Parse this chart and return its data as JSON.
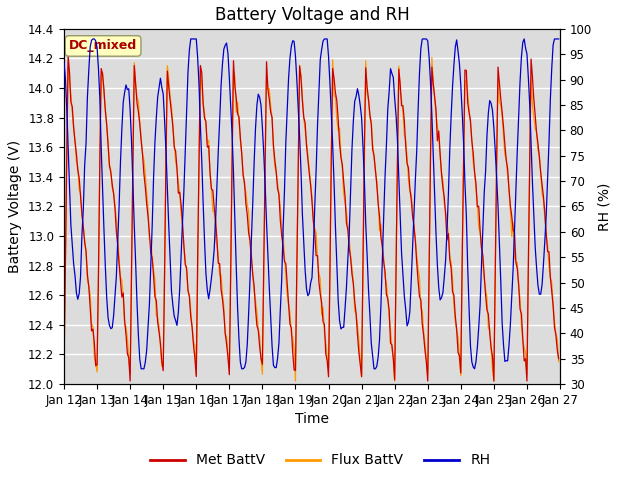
{
  "title": "Battery Voltage and RH",
  "xlabel": "Time",
  "ylabel_left": "Battery Voltage (V)",
  "ylabel_right": "RH (%)",
  "ylim_left": [
    12.0,
    14.4
  ],
  "ylim_right": [
    30,
    100
  ],
  "yticks_left": [
    12.0,
    12.2,
    12.4,
    12.6,
    12.8,
    13.0,
    13.2,
    13.4,
    13.6,
    13.8,
    14.0,
    14.2,
    14.4
  ],
  "yticks_right": [
    30,
    35,
    40,
    45,
    50,
    55,
    60,
    65,
    70,
    75,
    80,
    85,
    90,
    95,
    100
  ],
  "xtick_labels": [
    "Jan 12",
    "Jan 13",
    "Jan 14",
    "Jan 15",
    "Jan 16",
    "Jan 17",
    "Jan 18",
    "Jan 19",
    "Jan 20",
    "Jan 21",
    "Jan 22",
    "Jan 23",
    "Jan 24",
    "Jan 25",
    "Jan 26",
    "Jan 27"
  ],
  "color_met": "#cc0000",
  "color_flux": "#ff9900",
  "color_rh": "#0000cc",
  "bg_plot": "#dcdcdc",
  "bg_figure": "#ffffff",
  "annotation_text": "DC_mixed",
  "annotation_color": "#aa0000",
  "annotation_bg": "#ffffc0",
  "legend_labels": [
    "Met BattV",
    "Flux BattV",
    "RH"
  ],
  "title_fontsize": 12,
  "label_fontsize": 10,
  "tick_fontsize": 8.5
}
